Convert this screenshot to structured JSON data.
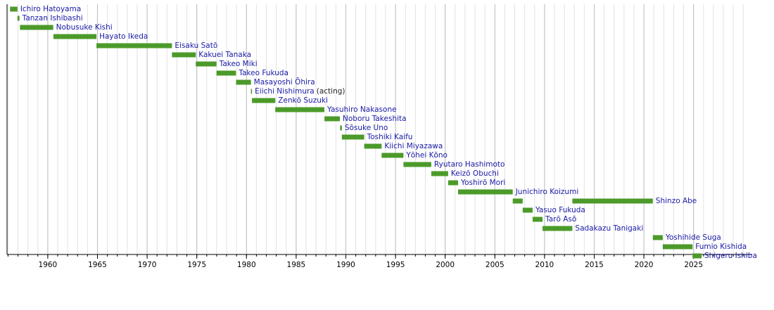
{
  "chart_data": {
    "type": "timeline",
    "color": "#4c9a2a",
    "label_color": "#1a1aa8",
    "note_color": "#222222",
    "xlim": [
      1955.9,
      2030.9
    ],
    "xticks": [
      1960,
      1965,
      1970,
      1975,
      1980,
      1985,
      1990,
      1995,
      2000,
      2005,
      2010,
      2015,
      2020,
      2025
    ],
    "minor_xticks": [
      1956,
      1957,
      1958,
      1959,
      1960,
      1961,
      1962,
      1963,
      1964,
      1965,
      1966,
      1967,
      1968,
      1969,
      1970,
      1971,
      1972,
      1973,
      1974,
      1975,
      1976,
      1977,
      1978,
      1979,
      1980,
      1981,
      1982,
      1983,
      1984,
      1985,
      1986,
      1987,
      1988,
      1989,
      1990,
      1991,
      1992,
      1993,
      1994,
      1995,
      1996,
      1997,
      1998,
      1999,
      2000,
      2001,
      2002,
      2003,
      2004,
      2005,
      2006,
      2007,
      2008,
      2009,
      2010,
      2011,
      2012,
      2013,
      2014,
      2015,
      2016,
      2017,
      2018,
      2019,
      2020,
      2021,
      2022,
      2023,
      2024,
      2025,
      2026,
      2027,
      2028,
      2029,
      2030
    ],
    "grid": true,
    "rows": [
      {
        "name": "Ichiro Hatoyama",
        "spans": [
          [
            1956.2,
            1956.95
          ]
        ]
      },
      {
        "name": "Tanzan Ishibashi",
        "spans": [
          [
            1956.95,
            1957.15
          ]
        ]
      },
      {
        "name": "Nobusuke Kishi",
        "spans": [
          [
            1957.2,
            1960.55
          ]
        ]
      },
      {
        "name": "Hayato Ikeda",
        "spans": [
          [
            1960.57,
            1964.9
          ]
        ]
      },
      {
        "name": "Eisaku Satō",
        "spans": [
          [
            1964.9,
            1972.5
          ]
        ]
      },
      {
        "name": "Kakuei Tanaka",
        "spans": [
          [
            1972.5,
            1974.9
          ]
        ]
      },
      {
        "name": "Takeo Miki",
        "spans": [
          [
            1974.9,
            1976.98
          ]
        ]
      },
      {
        "name": "Takeo Fukuda",
        "spans": [
          [
            1976.98,
            1978.94
          ]
        ]
      },
      {
        "name": "Masayoshi Ōhira",
        "spans": [
          [
            1978.95,
            1980.45
          ]
        ]
      },
      {
        "name": "Eiichi Nishimura",
        "note": "(acting)",
        "spans": [
          [
            1980.45,
            1980.55
          ]
        ]
      },
      {
        "name": "Zenkō Suzuki",
        "spans": [
          [
            1980.55,
            1982.9
          ]
        ]
      },
      {
        "name": "Yasuhiro Nakasone",
        "spans": [
          [
            1982.9,
            1987.84
          ]
        ]
      },
      {
        "name": "Noboru Takeshita",
        "spans": [
          [
            1987.85,
            1989.4
          ]
        ]
      },
      {
        "name": "Sōsuke Uno",
        "spans": [
          [
            1989.42,
            1989.6
          ]
        ]
      },
      {
        "name": "Toshiki Kaifu",
        "spans": [
          [
            1989.6,
            1991.85
          ]
        ]
      },
      {
        "name": "Kiichi Miyazawa",
        "spans": [
          [
            1991.85,
            1993.6
          ]
        ]
      },
      {
        "name": "Yōhei Kōno",
        "spans": [
          [
            1993.6,
            1995.8
          ]
        ]
      },
      {
        "name": "Ryutaro Hashimoto",
        "spans": [
          [
            1995.8,
            1998.6
          ]
        ]
      },
      {
        "name": "Keizō Obuchi",
        "spans": [
          [
            1998.6,
            2000.3
          ]
        ]
      },
      {
        "name": "Yoshirō Mori",
        "spans": [
          [
            2000.3,
            2001.3
          ]
        ]
      },
      {
        "name": "Junichiro Koizumi",
        "spans": [
          [
            2001.3,
            2006.8
          ]
        ]
      },
      {
        "name": "Shinzo Abe",
        "spans": [
          [
            2006.8,
            2007.8
          ],
          [
            2012.8,
            2020.9
          ]
        ]
      },
      {
        "name": "Yasuo Fukuda",
        "spans": [
          [
            2007.8,
            2008.8
          ]
        ]
      },
      {
        "name": "Tarō Asō",
        "spans": [
          [
            2008.8,
            2009.8
          ]
        ]
      },
      {
        "name": "Sadakazu Tanigaki",
        "spans": [
          [
            2009.8,
            2012.8
          ]
        ]
      },
      {
        "name": "Yoshihide Suga",
        "spans": [
          [
            2020.9,
            2021.9
          ]
        ]
      },
      {
        "name": "Fumio Kishida",
        "spans": [
          [
            2021.9,
            2024.9
          ]
        ]
      },
      {
        "name": "Shigeru Ishiba",
        "spans": [
          [
            2024.9,
            2025.8
          ]
        ]
      }
    ]
  }
}
